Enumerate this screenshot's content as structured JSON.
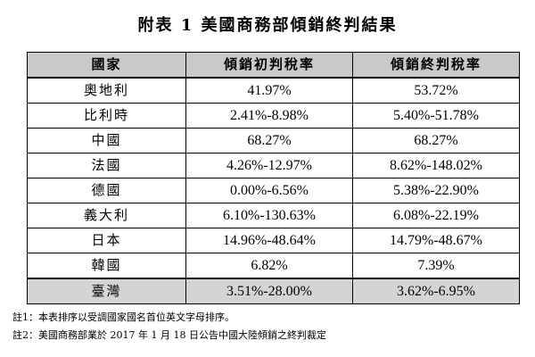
{
  "title": "附表 1  美國商務部傾銷終判結果",
  "table": {
    "headers": [
      "國家",
      "傾銷初判稅率",
      "傾銷終判稅率"
    ],
    "rows": [
      {
        "country": "奧地利",
        "preliminary": "41.97%",
        "final": "53.72%"
      },
      {
        "country": "比利時",
        "preliminary": "2.41%-8.98%",
        "final": "5.40%-51.78%"
      },
      {
        "country": "中國",
        "preliminary": "68.27%",
        "final": "68.27%"
      },
      {
        "country": "法國",
        "preliminary": "4.26%-12.97%",
        "final": "8.62%-148.02%"
      },
      {
        "country": "德國",
        "preliminary": "0.00%-6.56%",
        "final": "5.38%-22.90%"
      },
      {
        "country": "義大利",
        "preliminary": "6.10%-130.63%",
        "final": "6.08%-22.19%"
      },
      {
        "country": "日本",
        "preliminary": "14.96%-48.64%",
        "final": "14.79%-48.67%"
      },
      {
        "country": "韓國",
        "preliminary": "6.82%",
        "final": "7.39%"
      },
      {
        "country": "臺灣",
        "preliminary": "3.51%-28.00%",
        "final": "3.62%-6.95%"
      }
    ]
  },
  "notes": [
    "註1：本表排序以受調國家國名首位英文字母排序。",
    "註2：美國商務部業於 2017 年 1 月 18 日公告中國大陸傾銷之終判裁定"
  ],
  "colors": {
    "header_bg": "#c9c9c9",
    "highlight_bg": "#d4d4d4"
  }
}
